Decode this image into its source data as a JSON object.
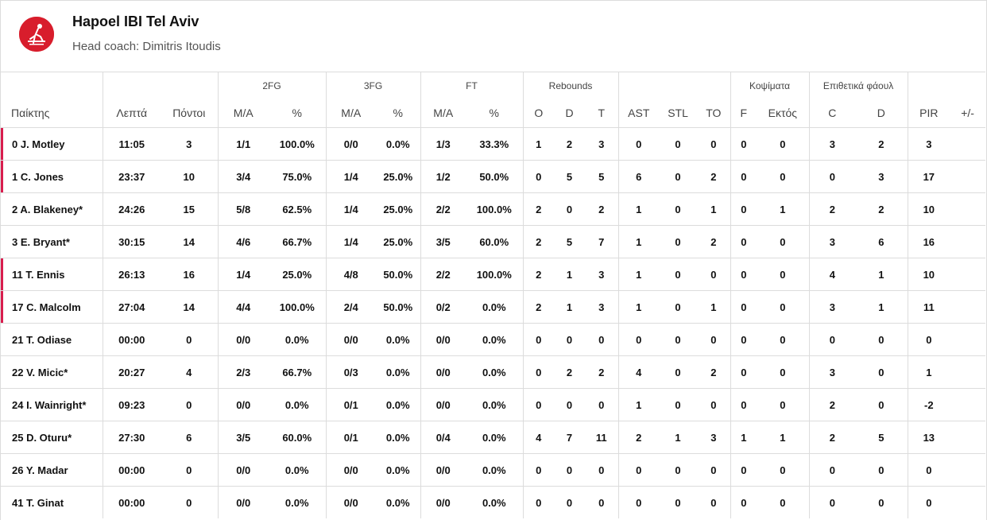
{
  "team": {
    "name": "Hapoel IBI Tel Aviv",
    "coach": "Head coach: Dimitris Itoudis"
  },
  "colors": {
    "accent": "#d81d4e",
    "logo": "#d81d2c",
    "border": "#dcdcdc"
  },
  "groups": {
    "fg2": "2FG",
    "fg3": "3FG",
    "ft": "FT",
    "reb": "Rebounds",
    "blk": "Κοψίματα",
    "fouls": "Επιθετικά φάουλ"
  },
  "headers": {
    "player": "Παίκτης",
    "min": "Λεπτά",
    "pts": "Πόντοι",
    "fg2_ma": "M/A",
    "fg2_pct": "%",
    "fg3_ma": "M/A",
    "fg3_pct": "%",
    "ft_ma": "M/A",
    "ft_pct": "%",
    "o": "O",
    "d": "D",
    "t": "T",
    "ast": "AST",
    "stl": "STL",
    "to": "TO",
    "f": "F",
    "ektos": "Εκτός",
    "c": "C",
    "d2": "D",
    "pir": "PIR",
    "pm": "+/-"
  },
  "rows": [
    {
      "player": "0 J. Motley",
      "min": "11:05",
      "pts": "3",
      "fg2": "1/1",
      "fg2p": "100.0%",
      "fg3": "0/0",
      "fg3p": "0.0%",
      "ft": "1/3",
      "ftp": "33.3%",
      "o": "1",
      "d": "2",
      "t": "3",
      "ast": "0",
      "stl": "0",
      "to": "0",
      "f": "0",
      "ektos": "0",
      "c": "3",
      "d2": "2",
      "pir": "3",
      "pm": ""
    },
    {
      "player": "1 C. Jones",
      "min": "23:37",
      "pts": "10",
      "fg2": "3/4",
      "fg2p": "75.0%",
      "fg3": "1/4",
      "fg3p": "25.0%",
      "ft": "1/2",
      "ftp": "50.0%",
      "o": "0",
      "d": "5",
      "t": "5",
      "ast": "6",
      "stl": "0",
      "to": "2",
      "f": "0",
      "ektos": "0",
      "c": "0",
      "d2": "3",
      "pir": "17",
      "pm": ""
    },
    {
      "player": "2 A. Blakeney*",
      "min": "24:26",
      "pts": "15",
      "fg2": "5/8",
      "fg2p": "62.5%",
      "fg3": "1/4",
      "fg3p": "25.0%",
      "ft": "2/2",
      "ftp": "100.0%",
      "o": "2",
      "d": "0",
      "t": "2",
      "ast": "1",
      "stl": "0",
      "to": "1",
      "f": "0",
      "ektos": "1",
      "c": "2",
      "d2": "2",
      "pir": "10",
      "pm": ""
    },
    {
      "player": "3 E. Bryant*",
      "min": "30:15",
      "pts": "14",
      "fg2": "4/6",
      "fg2p": "66.7%",
      "fg3": "1/4",
      "fg3p": "25.0%",
      "ft": "3/5",
      "ftp": "60.0%",
      "o": "2",
      "d": "5",
      "t": "7",
      "ast": "1",
      "stl": "0",
      "to": "2",
      "f": "0",
      "ektos": "0",
      "c": "3",
      "d2": "6",
      "pir": "16",
      "pm": ""
    },
    {
      "player": "11 T. Ennis",
      "min": "26:13",
      "pts": "16",
      "fg2": "1/4",
      "fg2p": "25.0%",
      "fg3": "4/8",
      "fg3p": "50.0%",
      "ft": "2/2",
      "ftp": "100.0%",
      "o": "2",
      "d": "1",
      "t": "3",
      "ast": "1",
      "stl": "0",
      "to": "0",
      "f": "0",
      "ektos": "0",
      "c": "4",
      "d2": "1",
      "pir": "10",
      "pm": ""
    },
    {
      "player": "17 C. Malcolm",
      "min": "27:04",
      "pts": "14",
      "fg2": "4/4",
      "fg2p": "100.0%",
      "fg3": "2/4",
      "fg3p": "50.0%",
      "ft": "0/2",
      "ftp": "0.0%",
      "o": "2",
      "d": "1",
      "t": "3",
      "ast": "1",
      "stl": "0",
      "to": "1",
      "f": "0",
      "ektos": "0",
      "c": "3",
      "d2": "1",
      "pir": "11",
      "pm": ""
    },
    {
      "player": "21 T. Odiase",
      "min": "00:00",
      "pts": "0",
      "fg2": "0/0",
      "fg2p": "0.0%",
      "fg3": "0/0",
      "fg3p": "0.0%",
      "ft": "0/0",
      "ftp": "0.0%",
      "o": "0",
      "d": "0",
      "t": "0",
      "ast": "0",
      "stl": "0",
      "to": "0",
      "f": "0",
      "ektos": "0",
      "c": "0",
      "d2": "0",
      "pir": "0",
      "pm": ""
    },
    {
      "player": "22 V. Micic*",
      "min": "20:27",
      "pts": "4",
      "fg2": "2/3",
      "fg2p": "66.7%",
      "fg3": "0/3",
      "fg3p": "0.0%",
      "ft": "0/0",
      "ftp": "0.0%",
      "o": "0",
      "d": "2",
      "t": "2",
      "ast": "4",
      "stl": "0",
      "to": "2",
      "f": "0",
      "ektos": "0",
      "c": "3",
      "d2": "0",
      "pir": "1",
      "pm": ""
    },
    {
      "player": "24 I. Wainright*",
      "min": "09:23",
      "pts": "0",
      "fg2": "0/0",
      "fg2p": "0.0%",
      "fg3": "0/1",
      "fg3p": "0.0%",
      "ft": "0/0",
      "ftp": "0.0%",
      "o": "0",
      "d": "0",
      "t": "0",
      "ast": "1",
      "stl": "0",
      "to": "0",
      "f": "0",
      "ektos": "0",
      "c": "2",
      "d2": "0",
      "pir": "-2",
      "pm": ""
    },
    {
      "player": "25 D. Oturu*",
      "min": "27:30",
      "pts": "6",
      "fg2": "3/5",
      "fg2p": "60.0%",
      "fg3": "0/1",
      "fg3p": "0.0%",
      "ft": "0/4",
      "ftp": "0.0%",
      "o": "4",
      "d": "7",
      "t": "11",
      "ast": "2",
      "stl": "1",
      "to": "3",
      "f": "1",
      "ektos": "1",
      "c": "2",
      "d2": "5",
      "pir": "13",
      "pm": ""
    },
    {
      "player": "26 Y. Madar",
      "min": "00:00",
      "pts": "0",
      "fg2": "0/0",
      "fg2p": "0.0%",
      "fg3": "0/0",
      "fg3p": "0.0%",
      "ft": "0/0",
      "ftp": "0.0%",
      "o": "0",
      "d": "0",
      "t": "0",
      "ast": "0",
      "stl": "0",
      "to": "0",
      "f": "0",
      "ektos": "0",
      "c": "0",
      "d2": "0",
      "pir": "0",
      "pm": ""
    },
    {
      "player": "41 T. Ginat",
      "min": "00:00",
      "pts": "0",
      "fg2": "0/0",
      "fg2p": "0.0%",
      "fg3": "0/0",
      "fg3p": "0.0%",
      "ft": "0/0",
      "ftp": "0.0%",
      "o": "0",
      "d": "0",
      "t": "0",
      "ast": "0",
      "stl": "0",
      "to": "0",
      "f": "0",
      "ektos": "0",
      "c": "0",
      "d2": "0",
      "pir": "0",
      "pm": ""
    }
  ],
  "on_court": [
    true,
    true,
    false,
    false,
    true,
    true,
    false,
    false,
    false,
    false,
    false,
    false
  ]
}
